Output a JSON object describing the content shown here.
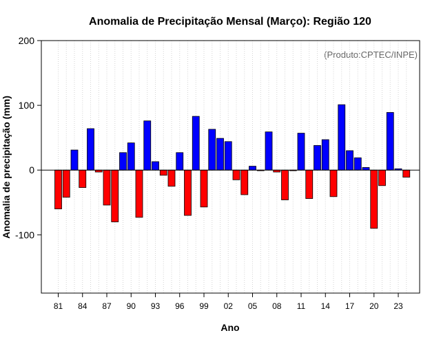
{
  "chart_data": {
    "type": "bar",
    "title": "Anomalia de Precipitação Mensal (Março): Região 120",
    "xlabel": "Ano",
    "ylabel": "Anomalia de precipitação (mm)",
    "annotation": "(Produto:CPTEC/INPE)",
    "ylim": [
      -190,
      200
    ],
    "yticks": [
      -100,
      0,
      100,
      200
    ],
    "grid": "vertical dotted",
    "categories": [
      "1981",
      "1982",
      "1983",
      "1984",
      "1985",
      "1986",
      "1987",
      "1988",
      "1989",
      "1990",
      "1991",
      "1992",
      "1993",
      "1994",
      "1995",
      "1996",
      "1997",
      "1998",
      "1999",
      "2000",
      "2001",
      "2002",
      "2003",
      "2004",
      "2005",
      "2006",
      "2007",
      "2008",
      "2009",
      "2010",
      "2011",
      "2012",
      "2013",
      "2014",
      "2015",
      "2016",
      "2017",
      "2018",
      "2019",
      "2020",
      "2021",
      "2022",
      "2023",
      "2024"
    ],
    "values": [
      -60,
      -42,
      31,
      -27,
      64,
      -3,
      -54,
      -80,
      27,
      42,
      -73,
      76,
      13,
      -8,
      -25,
      27,
      -70,
      83,
      -57,
      63,
      49,
      44,
      -15,
      -38,
      6,
      -1,
      59,
      -3,
      -46,
      -1,
      57,
      -44,
      38,
      47,
      -41,
      101,
      30,
      19,
      4,
      -90,
      -24,
      89,
      2,
      -11
    ],
    "tick_labels": [
      "81",
      "84",
      "87",
      "90",
      "93",
      "96",
      "99",
      "02",
      "05",
      "08",
      "11",
      "14",
      "17",
      "20",
      "23"
    ],
    "colors": {
      "positive": "#0000ff",
      "negative": "#ff0000",
      "zero_line": "#000000",
      "grid": "#d3d3d3"
    }
  }
}
